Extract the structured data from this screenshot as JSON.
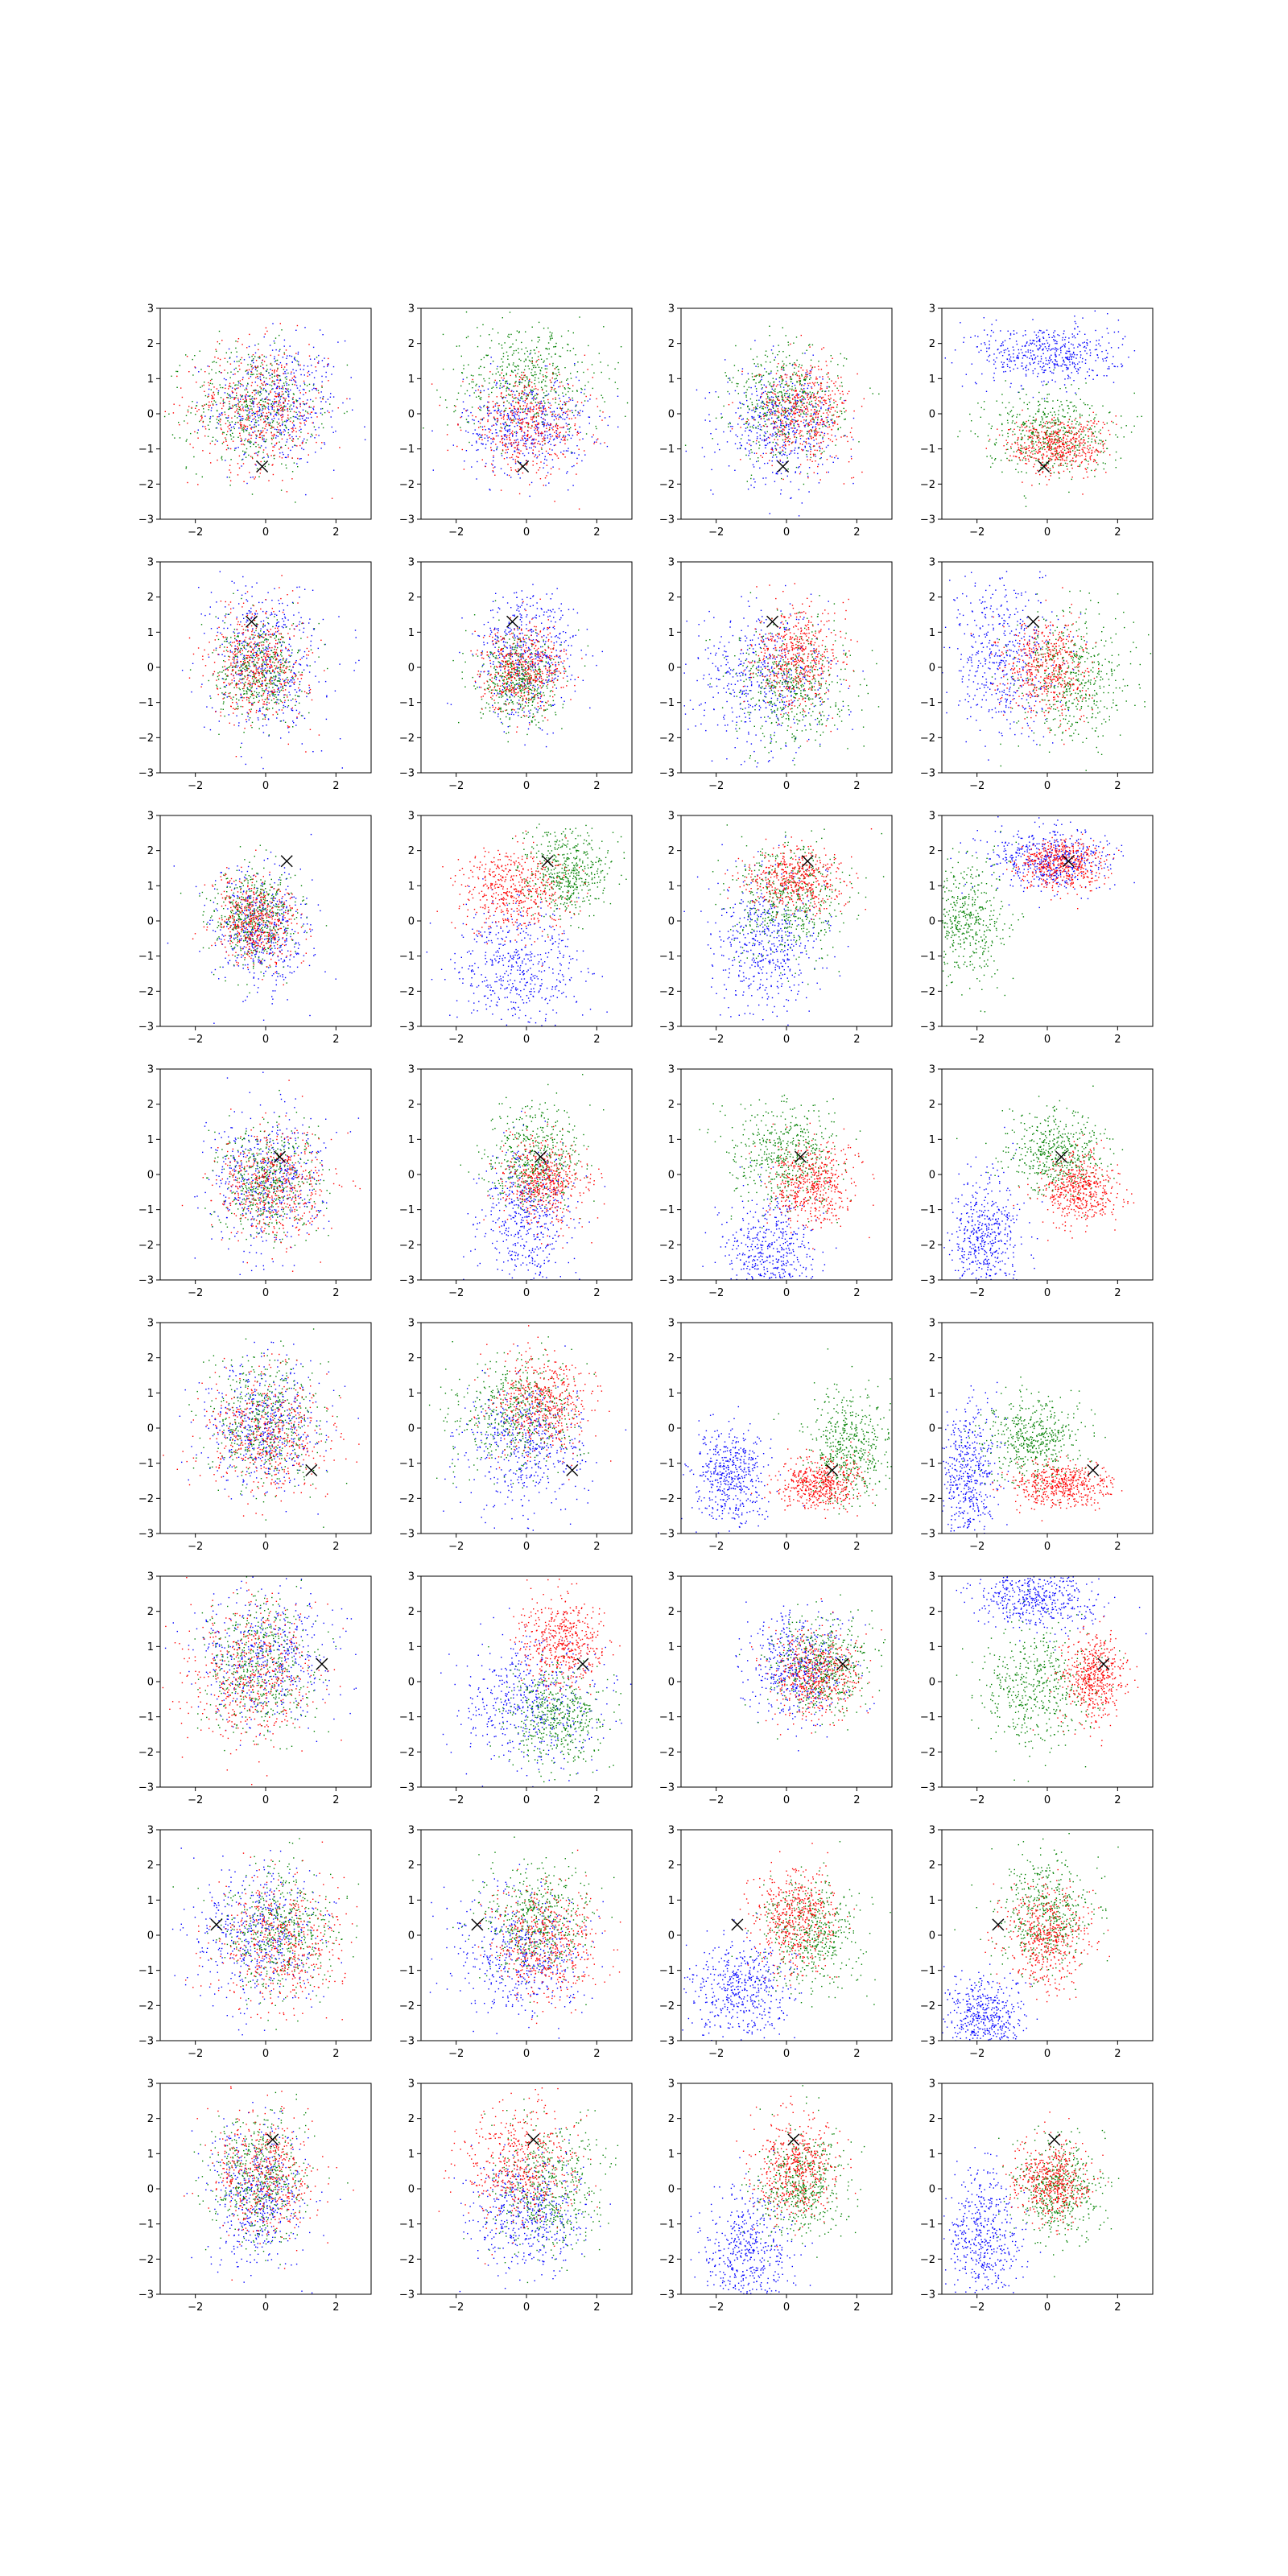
{
  "chart_data": {
    "type": "scatter",
    "grid": false,
    "legend": "none",
    "layout": {
      "rows": 8,
      "cols": 4
    },
    "xlim": [
      -3,
      3
    ],
    "ylim": [
      -3,
      3
    ],
    "xticks": [
      -2,
      0,
      2
    ],
    "yticks": [
      -3,
      -2,
      -1,
      0,
      1,
      2,
      3
    ],
    "xtick_labels": [
      "−2",
      "0",
      "2"
    ],
    "ytick_labels": [
      "−3",
      "−2",
      "−1",
      "0",
      "1",
      "2",
      "3"
    ],
    "series_colors": {
      "blue": "#0000ff",
      "green": "#008000",
      "red": "#ff0000"
    },
    "marker_color": "#000000",
    "points_per_series": 500,
    "panels": [
      {
        "marker": [
          -0.1,
          -1.5
        ],
        "clusters": {
          "blue": [
            0.3,
            0.3,
            0.9,
            0.9
          ],
          "green": [
            -0.4,
            0.2,
            0.9,
            0.9
          ],
          "red": [
            -0.2,
            0.2,
            1.0,
            0.9
          ]
        }
      },
      {
        "marker": [
          -0.1,
          -1.5
        ],
        "clusters": {
          "blue": [
            0.0,
            -0.3,
            0.9,
            0.7
          ],
          "green": [
            0.0,
            1.0,
            1.1,
            0.8
          ],
          "red": [
            0.0,
            -0.3,
            0.9,
            0.7
          ]
        }
      },
      {
        "marker": [
          -0.1,
          -1.5
        ],
        "clusters": {
          "blue": [
            -0.2,
            -0.3,
            0.8,
            0.8
          ],
          "green": [
            0.0,
            0.3,
            0.8,
            0.8
          ],
          "red": [
            0.5,
            0.1,
            0.7,
            0.7
          ]
        }
      },
      {
        "marker": [
          -0.1,
          -1.5
        ],
        "clusters": {
          "blue": [
            0.0,
            1.7,
            1.0,
            0.45
          ],
          "green": [
            0.0,
            -0.5,
            0.9,
            0.6
          ],
          "red": [
            0.3,
            -0.9,
            0.7,
            0.4
          ]
        }
      },
      {
        "marker": [
          -0.4,
          1.3
        ],
        "clusters": {
          "blue": [
            0.0,
            0.3,
            0.8,
            1.1
          ],
          "green": [
            -0.2,
            -0.1,
            0.6,
            0.7
          ],
          "red": [
            -0.2,
            0.1,
            0.7,
            0.8
          ]
        }
      },
      {
        "marker": [
          -0.4,
          1.3
        ],
        "clusters": {
          "blue": [
            0.0,
            0.4,
            0.7,
            0.9
          ],
          "green": [
            -0.2,
            -0.4,
            0.6,
            0.6
          ],
          "red": [
            -0.1,
            0.0,
            0.6,
            0.6
          ]
        }
      },
      {
        "marker": [
          -0.4,
          1.3
        ],
        "clusters": {
          "blue": [
            -0.7,
            -0.3,
            1.0,
            1.0
          ],
          "green": [
            0.2,
            -0.5,
            0.8,
            0.9
          ],
          "red": [
            0.3,
            0.3,
            0.6,
            0.7
          ]
        }
      },
      {
        "marker": [
          -0.4,
          1.3
        ],
        "clusters": {
          "blue": [
            -1.3,
            0.3,
            0.8,
            1.1
          ],
          "green": [
            0.7,
            -0.3,
            0.8,
            0.9
          ],
          "red": [
            0.0,
            0.0,
            0.6,
            0.7
          ]
        }
      },
      {
        "marker": [
          0.6,
          1.7
        ],
        "clusters": {
          "blue": [
            -0.2,
            -0.3,
            0.7,
            0.9
          ],
          "green": [
            -0.3,
            0.1,
            0.6,
            0.7
          ],
          "red": [
            -0.3,
            0.0,
            0.6,
            0.6
          ]
        }
      },
      {
        "marker": [
          0.6,
          1.7
        ],
        "clusters": {
          "blue": [
            -0.2,
            -1.3,
            0.9,
            0.9
          ],
          "green": [
            1.1,
            1.4,
            0.6,
            0.6
          ],
          "red": [
            -0.4,
            0.9,
            0.8,
            0.6
          ]
        }
      },
      {
        "marker": [
          0.6,
          1.7
        ],
        "clusters": {
          "blue": [
            -0.5,
            -0.6,
            0.8,
            1.0
          ],
          "green": [
            0.0,
            0.6,
            0.8,
            0.8
          ],
          "red": [
            0.2,
            1.2,
            0.7,
            0.45
          ]
        }
      },
      {
        "marker": [
          0.6,
          1.7
        ],
        "clusters": {
          "blue": [
            0.0,
            1.8,
            0.9,
            0.45
          ],
          "green": [
            -2.4,
            0.0,
            0.6,
            0.9
          ],
          "red": [
            0.4,
            1.6,
            0.6,
            0.35
          ]
        }
      },
      {
        "marker": [
          0.4,
          0.5
        ],
        "clusters": {
          "blue": [
            0.0,
            -0.2,
            0.8,
            1.0
          ],
          "green": [
            0.0,
            -0.2,
            0.7,
            0.8
          ],
          "red": [
            0.2,
            -0.3,
            0.8,
            0.8
          ]
        }
      },
      {
        "marker": [
          0.4,
          0.5
        ],
        "clusters": {
          "blue": [
            0.0,
            -1.2,
            0.6,
            1.0
          ],
          "green": [
            0.2,
            0.5,
            0.7,
            0.7
          ],
          "red": [
            0.5,
            -0.2,
            0.6,
            0.6
          ]
        }
      },
      {
        "marker": [
          0.4,
          0.5
        ],
        "clusters": {
          "blue": [
            -0.5,
            -2.2,
            0.6,
            0.8
          ],
          "green": [
            0.0,
            0.6,
            0.8,
            0.7
          ],
          "red": [
            0.7,
            -0.3,
            0.6,
            0.6
          ]
        }
      },
      {
        "marker": [
          0.4,
          0.5
        ],
        "clusters": {
          "blue": [
            -1.8,
            -1.8,
            0.5,
            0.9
          ],
          "green": [
            0.3,
            0.6,
            0.7,
            0.6
          ],
          "red": [
            0.9,
            -0.4,
            0.5,
            0.5
          ]
        }
      },
      {
        "marker": [
          1.3,
          -1.2
        ],
        "clusters": {
          "blue": [
            -0.1,
            0.0,
            0.8,
            0.9
          ],
          "green": [
            0.0,
            0.1,
            0.8,
            0.9
          ],
          "red": [
            0.1,
            -0.2,
            0.9,
            0.9
          ]
        }
      },
      {
        "marker": [
          1.3,
          -1.2
        ],
        "clusters": {
          "blue": [
            0.0,
            -0.5,
            0.9,
            0.9
          ],
          "green": [
            -0.3,
            0.5,
            0.9,
            0.8
          ],
          "red": [
            0.4,
            0.7,
            0.7,
            0.7
          ]
        }
      },
      {
        "marker": [
          1.3,
          -1.2
        ],
        "clusters": {
          "blue": [
            -1.6,
            -1.3,
            0.5,
            0.7
          ],
          "green": [
            1.8,
            -0.5,
            0.6,
            0.8
          ],
          "red": [
            0.9,
            -1.6,
            0.6,
            0.35
          ]
        }
      },
      {
        "marker": [
          1.3,
          -1.2
        ],
        "clusters": {
          "blue": [
            -2.3,
            -1.3,
            0.45,
            1.0
          ],
          "green": [
            -0.4,
            -0.3,
            0.7,
            0.6
          ],
          "red": [
            0.4,
            -1.6,
            0.7,
            0.3
          ]
        }
      },
      {
        "marker": [
          1.6,
          0.5
        ],
        "clusters": {
          "blue": [
            0.0,
            0.8,
            0.9,
            0.9
          ],
          "green": [
            -0.2,
            0.5,
            0.8,
            1.0
          ],
          "red": [
            -0.4,
            0.3,
            0.9,
            1.0
          ]
        }
      },
      {
        "marker": [
          1.6,
          0.5
        ],
        "clusters": {
          "blue": [
            0.1,
            -0.6,
            1.0,
            0.9
          ],
          "green": [
            0.8,
            -1.0,
            0.7,
            0.7
          ],
          "red": [
            1.0,
            1.1,
            0.6,
            0.6
          ]
        }
      },
      {
        "marker": [
          1.6,
          0.5
        ],
        "clusters": {
          "blue": [
            0.3,
            0.4,
            0.7,
            0.7
          ],
          "green": [
            1.0,
            0.4,
            0.7,
            0.7
          ],
          "red": [
            0.8,
            0.2,
            0.6,
            0.6
          ]
        }
      },
      {
        "marker": [
          1.6,
          0.5
        ],
        "clusters": {
          "blue": [
            -0.4,
            2.4,
            0.9,
            0.45
          ],
          "green": [
            -0.3,
            -0.2,
            0.8,
            0.9
          ],
          "red": [
            1.3,
            0.1,
            0.45,
            0.6
          ]
        }
      },
      {
        "marker": [
          -1.4,
          0.3
        ],
        "clusters": {
          "blue": [
            -0.2,
            0.0,
            0.9,
            1.0
          ],
          "green": [
            0.4,
            0.1,
            0.8,
            0.9
          ],
          "red": [
            0.4,
            -0.2,
            0.9,
            0.9
          ]
        }
      },
      {
        "marker": [
          -1.4,
          0.3
        ],
        "clusters": {
          "blue": [
            -0.2,
            -0.6,
            0.9,
            0.9
          ],
          "green": [
            0.2,
            0.4,
            0.8,
            0.8
          ],
          "red": [
            0.6,
            -0.2,
            0.7,
            0.8
          ]
        }
      },
      {
        "marker": [
          -1.4,
          0.3
        ],
        "clusters": {
          "blue": [
            -1.3,
            -1.6,
            0.7,
            0.7
          ],
          "green": [
            0.7,
            0.0,
            0.7,
            0.8
          ],
          "red": [
            0.2,
            0.5,
            0.6,
            0.7
          ]
        }
      },
      {
        "marker": [
          -1.4,
          0.3
        ],
        "clusters": {
          "blue": [
            -1.8,
            -2.4,
            0.5,
            0.6
          ],
          "green": [
            0.0,
            0.6,
            0.7,
            0.8
          ],
          "red": [
            0.0,
            0.0,
            0.6,
            0.7
          ]
        }
      },
      {
        "marker": [
          0.2,
          1.4
        ],
        "clusters": {
          "blue": [
            -0.3,
            -0.2,
            0.7,
            1.0
          ],
          "green": [
            -0.2,
            0.3,
            0.7,
            0.9
          ],
          "red": [
            -0.1,
            0.4,
            0.7,
            0.9
          ]
        }
      },
      {
        "marker": [
          0.2,
          1.4
        ],
        "clusters": {
          "blue": [
            0.0,
            -0.7,
            0.8,
            0.8
          ],
          "green": [
            0.6,
            0.0,
            0.8,
            0.9
          ],
          "red": [
            -0.2,
            0.7,
            0.8,
            0.8
          ]
        }
      },
      {
        "marker": [
          0.2,
          1.4
        ],
        "clusters": {
          "blue": [
            -1.1,
            -1.9,
            0.6,
            0.9
          ],
          "green": [
            0.4,
            0.1,
            0.6,
            0.8
          ],
          "red": [
            0.2,
            0.6,
            0.6,
            0.7
          ]
        }
      },
      {
        "marker": [
          0.2,
          1.4
        ],
        "clusters": {
          "blue": [
            -1.8,
            -1.4,
            0.5,
            1.0
          ],
          "green": [
            0.3,
            0.0,
            0.6,
            0.7
          ],
          "red": [
            0.1,
            0.2,
            0.5,
            0.6
          ]
        }
      }
    ]
  }
}
